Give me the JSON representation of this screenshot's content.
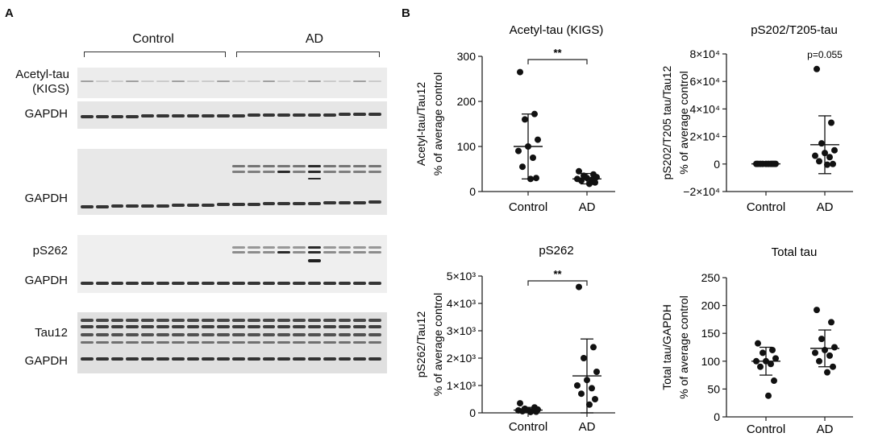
{
  "panelA": {
    "letter": "A",
    "groups": {
      "control": "Control",
      "ad": "AD"
    },
    "labels": {
      "acetyl_line1": "Acetyl-tau",
      "acetyl_line2": "(KIGS)",
      "gapdh1": "GAPDH",
      "gapdh2": "GAPDH",
      "ps262": "pS262",
      "gapdh3": "GAPDH",
      "tau12": "Tau12",
      "gapdh4": "GAPDH"
    }
  },
  "panelB": {
    "letter": "B"
  },
  "chart_data": [
    {
      "type": "scatter",
      "title": "Acetyl-tau (KIGS)",
      "ylabel_line1": "Acetyl-tau/Tau12",
      "ylabel_line2": "% of average control",
      "categories": [
        "Control",
        "AD"
      ],
      "ylim": [
        0,
        300
      ],
      "yticks": [
        "0",
        "100",
        "200",
        "300"
      ],
      "ytick_values": [
        0,
        100,
        200,
        300
      ],
      "series": [
        {
          "points": [
            265,
            172,
            160,
            115,
            100,
            90,
            75,
            55,
            30,
            28
          ],
          "mean": 100,
          "sd_low": 28,
          "sd_high": 172
        },
        {
          "points": [
            45,
            38,
            35,
            32,
            30,
            28,
            26,
            24,
            20,
            17
          ],
          "mean": 28,
          "sd_low": 17,
          "sd_high": 40
        }
      ],
      "annotation": "**",
      "annotation_bracket": true
    },
    {
      "type": "scatter",
      "title": "pS202/T205-tau",
      "ylabel_line1": "pS202/T205 tau/Tau12",
      "ylabel_line2": "% of average control",
      "categories": [
        "Control",
        "AD"
      ],
      "ylim": [
        -20000,
        80000
      ],
      "yticks": [
        "−2×10⁴",
        "0",
        "2×10⁴",
        "4×10⁴",
        "6×10⁴",
        "8×10⁴"
      ],
      "ytick_values": [
        -20000,
        0,
        20000,
        40000,
        60000,
        80000
      ],
      "series": [
        {
          "points": [
            100,
            100,
            100,
            100,
            100,
            100,
            100,
            100,
            100,
            100
          ],
          "mean": 100,
          "sd_low": -500,
          "sd_high": 700
        },
        {
          "points": [
            69000,
            30000,
            15000,
            10000,
            8000,
            6000,
            5000,
            2000,
            0,
            -500
          ],
          "mean": 14000,
          "sd_low": -7000,
          "sd_high": 35000
        }
      ],
      "annotation": "p=0.055",
      "annotation_bracket": false
    },
    {
      "type": "scatter",
      "title": "pS262",
      "ylabel_line1": "pS262/Tau12",
      "ylabel_line2": "% of average control",
      "categories": [
        "Control",
        "AD"
      ],
      "ylim": [
        0,
        5000
      ],
      "yticks": [
        "0",
        "1×10³",
        "2×10³",
        "3×10³",
        "4×10³",
        "5×10³"
      ],
      "ytick_values": [
        0,
        1000,
        2000,
        3000,
        4000,
        5000
      ],
      "series": [
        {
          "points": [
            350,
            200,
            150,
            120,
            100,
            90,
            80,
            60,
            40,
            30
          ],
          "mean": 100,
          "sd_low": 20,
          "sd_high": 200
        },
        {
          "points": [
            4600,
            2400,
            2000,
            1500,
            1200,
            1000,
            900,
            700,
            500,
            300
          ],
          "mean": 1350,
          "sd_low": 0,
          "sd_high": 2700
        }
      ],
      "annotation": "**",
      "annotation_bracket": true
    },
    {
      "type": "scatter",
      "title": "Total tau",
      "ylabel_line1": "Total tau/GAPDH",
      "ylabel_line2": "% of average control",
      "categories": [
        "Control",
        "AD"
      ],
      "ylim": [
        0,
        250
      ],
      "yticks": [
        "0",
        "50",
        "100",
        "150",
        "200",
        "250"
      ],
      "ytick_values": [
        0,
        50,
        100,
        150,
        200,
        250
      ],
      "series": [
        {
          "points": [
            132,
            120,
            115,
            105,
            100,
            100,
            95,
            90,
            65,
            38
          ],
          "mean": 100,
          "sd_low": 75,
          "sd_high": 125
        },
        {
          "points": [
            192,
            170,
            140,
            125,
            120,
            115,
            110,
            100,
            90,
            80
          ],
          "mean": 123,
          "sd_low": 90,
          "sd_high": 156
        }
      ],
      "annotation": "",
      "annotation_bracket": false
    }
  ]
}
